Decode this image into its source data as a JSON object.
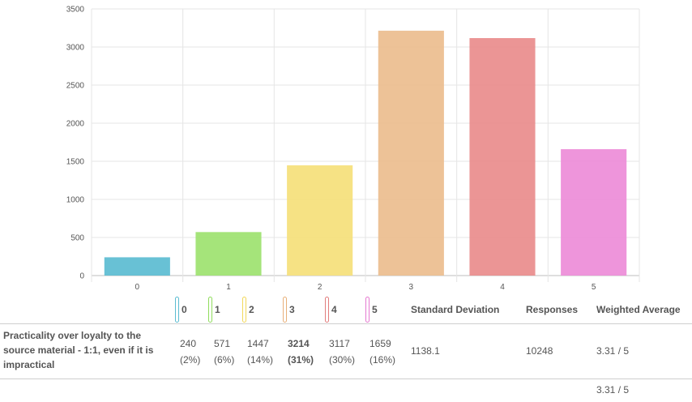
{
  "chart_data": {
    "type": "bar",
    "categories": [
      "0",
      "1",
      "2",
      "3",
      "4",
      "5"
    ],
    "values": [
      240,
      571,
      1447,
      3214,
      3117,
      1659
    ],
    "ylim": [
      0,
      3500
    ],
    "yticks": [
      0,
      500,
      1000,
      1500,
      2000,
      2500,
      3000,
      3500
    ],
    "colors": [
      "#5bbcd1",
      "#9de26f",
      "#f5e07a",
      "#ecbd8e",
      "#e98c8c",
      "#ed8cd8"
    ],
    "title": "",
    "xlabel": "",
    "ylabel": ""
  },
  "legend": [
    {
      "label": "0",
      "color": "#5bbcd1"
    },
    {
      "label": "1",
      "color": "#8fdc5c"
    },
    {
      "label": "2",
      "color": "#f2d85a"
    },
    {
      "label": "3",
      "color": "#e8b07a"
    },
    {
      "label": "4",
      "color": "#e27d7d"
    },
    {
      "label": "5",
      "color": "#e57ad0"
    }
  ],
  "table": {
    "headers": {
      "std_dev": "Standard Deviation",
      "responses": "Responses",
      "weighted_avg": "Weighted Average"
    },
    "row": {
      "label": "Practicality over loyalty to the source material - 1:1, even if it is impractical",
      "cells": [
        {
          "count": "240",
          "pct": "(2%)"
        },
        {
          "count": "571",
          "pct": "(6%)"
        },
        {
          "count": "1447",
          "pct": "(14%)"
        },
        {
          "count": "3214",
          "pct": "(31%)"
        },
        {
          "count": "3117",
          "pct": "(30%)"
        },
        {
          "count": "1659",
          "pct": "(16%)"
        }
      ],
      "std_dev": "1138.1",
      "responses": "10248",
      "weighted_avg": "3.31 / 5"
    },
    "footer_weighted_avg": "3.31 / 5"
  }
}
